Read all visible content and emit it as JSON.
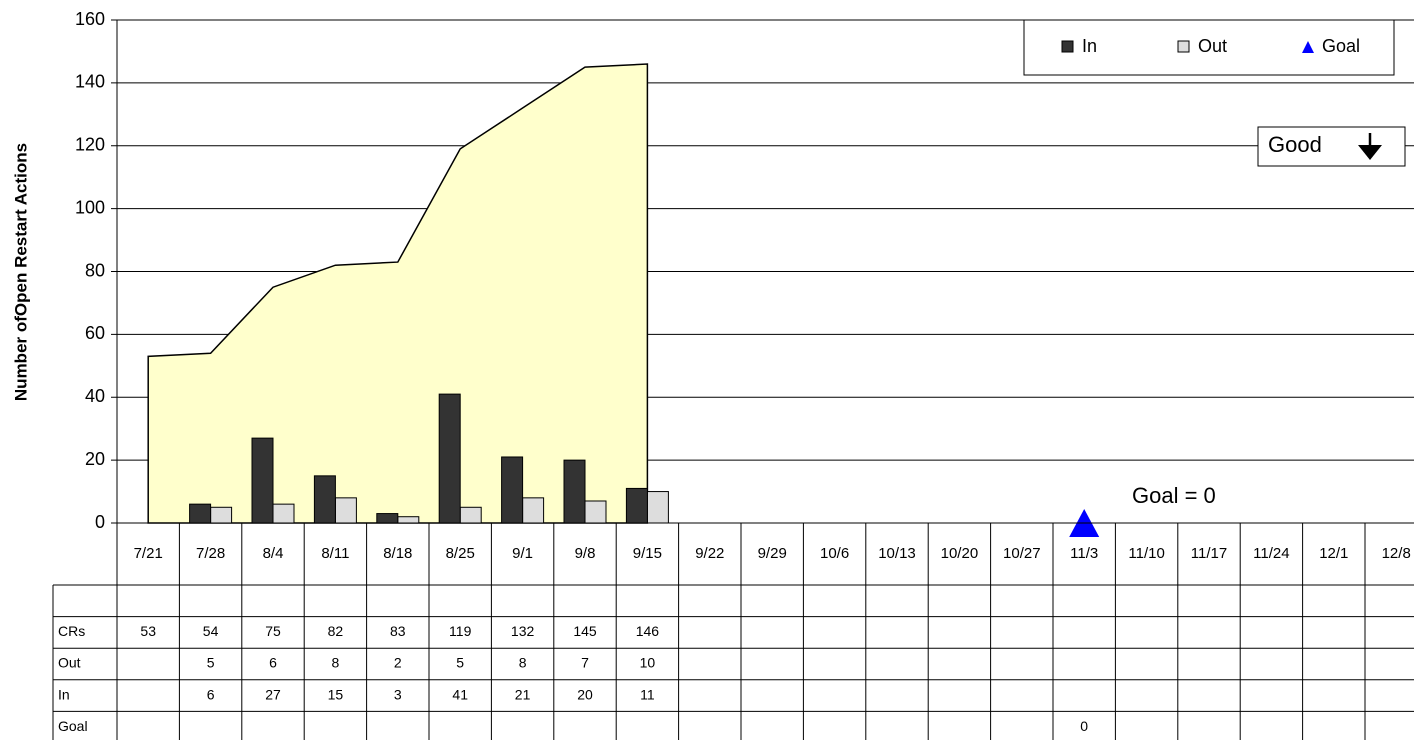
{
  "chart_data": {
    "type": "combo",
    "y_label": "Number ofOpen Restart Actions",
    "categories": [
      "7/21",
      "7/28",
      "8/4",
      "8/11",
      "8/18",
      "8/25",
      "9/1",
      "9/8",
      "9/15",
      "9/22",
      "9/29",
      "10/6",
      "10/13",
      "10/20",
      "10/27",
      "11/3",
      "11/10",
      "11/17",
      "11/24",
      "12/1",
      "12/8"
    ],
    "series": [
      {
        "name": "CRs",
        "type": "area",
        "color": "#ffffcc",
        "legend": false,
        "values": [
          53,
          54,
          75,
          82,
          83,
          119,
          132,
          145,
          146,
          null,
          null,
          null,
          null,
          null,
          null,
          null,
          null,
          null,
          null,
          null,
          null
        ]
      },
      {
        "name": "Out",
        "type": "bar",
        "color": "#dddddd",
        "legend": true,
        "values": [
          null,
          5,
          6,
          8,
          2,
          5,
          8,
          7,
          10,
          null,
          null,
          null,
          null,
          null,
          null,
          null,
          null,
          null,
          null,
          null,
          null
        ]
      },
      {
        "name": "In",
        "type": "bar",
        "color": "#333333",
        "legend": true,
        "values": [
          null,
          6,
          27,
          15,
          3,
          41,
          21,
          20,
          11,
          null,
          null,
          null,
          null,
          null,
          null,
          null,
          null,
          null,
          null,
          null,
          null
        ]
      },
      {
        "name": "Goal",
        "type": "marker",
        "color": "#0000ff",
        "legend": true,
        "values": [
          null,
          null,
          null,
          null,
          null,
          null,
          null,
          null,
          null,
          null,
          null,
          null,
          null,
          null,
          null,
          0,
          null,
          null,
          null,
          null,
          null
        ]
      }
    ],
    "legend_order": [
      2,
      1,
      3
    ],
    "ylim": [
      0,
      160
    ],
    "yticks": [
      0,
      20,
      40,
      60,
      80,
      100,
      120,
      140,
      160
    ],
    "grid": true,
    "legend_position": "upper right",
    "annotations": [
      "Good",
      "Goal = 0"
    ]
  }
}
